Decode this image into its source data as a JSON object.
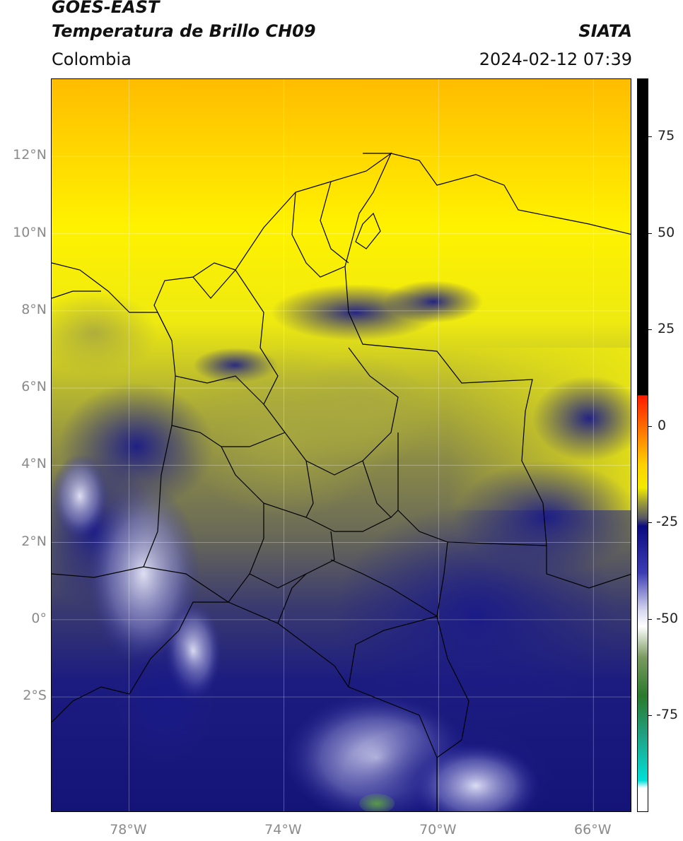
{
  "header": {
    "satellite": "GOES-EAST",
    "product": "Temperatura de Brillo CH09",
    "region": "Colombia",
    "organization": "SIATA",
    "timestamp": "2024-02-12 07:39"
  },
  "axes": {
    "latitude_labels": [
      "12°N",
      "10°N",
      "8°N",
      "6°N",
      "4°N",
      "2°N",
      "0°",
      "2°S"
    ],
    "latitude_values": [
      12,
      10,
      8,
      6,
      4,
      2,
      0,
      -2
    ],
    "longitude_labels": [
      "78°W",
      "74°W",
      "70°W",
      "66°W"
    ],
    "longitude_values": [
      -78,
      -74,
      -70,
      -66
    ],
    "lon_range": [
      -80,
      -65
    ],
    "lat_range": [
      -5,
      14
    ]
  },
  "colorbar": {
    "labels": [
      "75",
      "50",
      "25",
      "0",
      "-25",
      "-50",
      "-75"
    ],
    "values": [
      75,
      50,
      25,
      0,
      -25,
      -50,
      -75
    ],
    "range": [
      -100,
      90
    ],
    "stops": [
      {
        "v": 90,
        "c": "#000000"
      },
      {
        "v": 8,
        "c": "#000000"
      },
      {
        "v": 7.9,
        "c": "#ff1a00"
      },
      {
        "v": 0,
        "c": "#ff6a00"
      },
      {
        "v": -10,
        "c": "#ffd000"
      },
      {
        "v": -16,
        "c": "#f2ea00"
      },
      {
        "v": -20,
        "c": "#9a9a3a"
      },
      {
        "v": -24,
        "c": "#555566"
      },
      {
        "v": -26,
        "c": "#0a0a80"
      },
      {
        "v": -38,
        "c": "#3c3cb4"
      },
      {
        "v": -48,
        "c": "#d8d8f0"
      },
      {
        "v": -52,
        "c": "#ffffff"
      },
      {
        "v": -60,
        "c": "#7a9a60"
      },
      {
        "v": -70,
        "c": "#2a7a2a"
      },
      {
        "v": -80,
        "c": "#20a080"
      },
      {
        "v": -92,
        "c": "#00e0d8"
      },
      {
        "v": -94,
        "c": "#ffffff"
      },
      {
        "v": -100,
        "c": "#ffffff"
      }
    ]
  },
  "colors": {
    "warm_yellow": "#f6e600",
    "orange": "#ffc000",
    "olive": "#7a7a4a",
    "deep_blue": "#141480",
    "pale": "#d0d0f0"
  }
}
